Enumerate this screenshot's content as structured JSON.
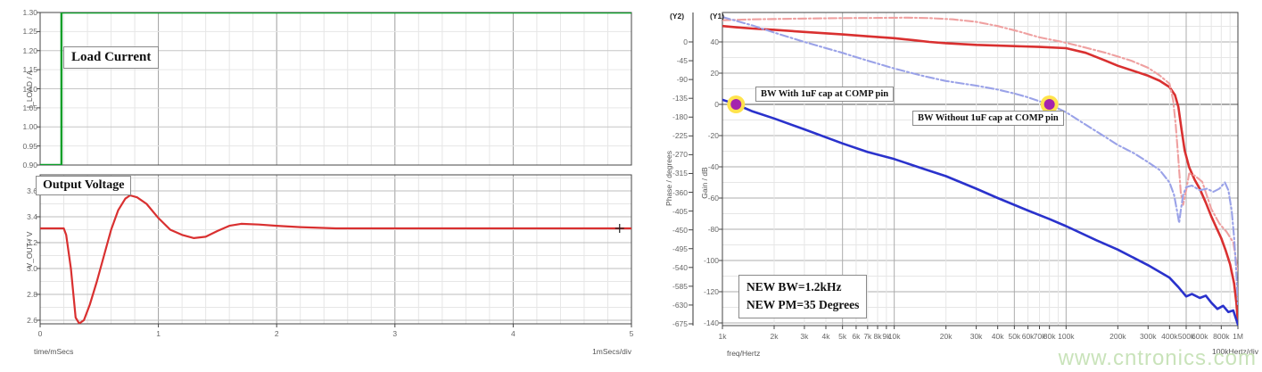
{
  "watermark": "www.cntronics.com",
  "colors": {
    "load_current_green": "#0a9e28",
    "output_voltage_red": "#d93030",
    "phase_with_red": "#d93030",
    "phase_without_pink": "#efa0a0",
    "gain_with_blue": "#2a32cc",
    "gain_without_lightblue": "#9aa2e8",
    "marker_purple": "#a423ae",
    "marker_halo_yellow": "#ffe34d",
    "grid_minor": "#e3e3e3",
    "grid_major": "#acacac",
    "frame": "#444444"
  },
  "chart_data": [
    {
      "id": "load-transient",
      "type": "line",
      "xlabel": "time/mSecs",
      "x_div_label": "1mSecs/div",
      "xlim": [
        0,
        5
      ],
      "x_ticks": [
        "0",
        "1",
        "2",
        "3",
        "4",
        "5"
      ],
      "x_minor_step": 0.2,
      "panes": [
        {
          "ylabel": "I_LOAD / A",
          "annotation": "Load Current",
          "ylim": [
            0.9,
            1.3
          ],
          "y_ticks": [
            "1.30",
            "1.25",
            "1.20",
            "1.15",
            "1.10",
            "1.05",
            "1.00",
            "0.95",
            "0.90"
          ],
          "series": [
            {
              "name": "load-current",
              "color": "#0a9e28",
              "dash": "none",
              "width": 2.4,
              "points": [
                [
                  0,
                  0.9
                ],
                [
                  0.18,
                  0.9
                ],
                [
                  0.18,
                  1.3
                ],
                [
                  5,
                  1.3
                ]
              ]
            }
          ]
        },
        {
          "ylabel": "V_OUT / V",
          "annotation": "Output Voltage",
          "ylim": [
            2.572,
            3.724
          ],
          "y_ticks": [
            "3.6",
            "3.4",
            "3.2",
            "3.0",
            "2.8",
            "2.6"
          ],
          "series": [
            {
              "name": "output-voltage",
              "color": "#d93030",
              "dash": "none",
              "width": 2.2,
              "points": [
                [
                  0,
                  3.31
                ],
                [
                  0.2,
                  3.31
                ],
                [
                  0.22,
                  3.26
                ],
                [
                  0.26,
                  3.0
                ],
                [
                  0.3,
                  2.62
                ],
                [
                  0.33,
                  2.575
                ],
                [
                  0.37,
                  2.6
                ],
                [
                  0.42,
                  2.72
                ],
                [
                  0.48,
                  2.9
                ],
                [
                  0.54,
                  3.1
                ],
                [
                  0.6,
                  3.3
                ],
                [
                  0.66,
                  3.45
                ],
                [
                  0.72,
                  3.54
                ],
                [
                  0.76,
                  3.565
                ],
                [
                  0.82,
                  3.55
                ],
                [
                  0.9,
                  3.5
                ],
                [
                  1.0,
                  3.39
                ],
                [
                  1.1,
                  3.3
                ],
                [
                  1.2,
                  3.26
                ],
                [
                  1.3,
                  3.235
                ],
                [
                  1.4,
                  3.245
                ],
                [
                  1.5,
                  3.29
                ],
                [
                  1.6,
                  3.33
                ],
                [
                  1.7,
                  3.345
                ],
                [
                  1.85,
                  3.34
                ],
                [
                  2.0,
                  3.33
                ],
                [
                  2.2,
                  3.32
                ],
                [
                  2.5,
                  3.31
                ],
                [
                  5,
                  3.31
                ]
              ]
            }
          ],
          "cursor": [
            4.9,
            3.31
          ]
        }
      ]
    },
    {
      "id": "loop-gain-bode",
      "type": "line",
      "x_scale": "log",
      "xlabel": "freq/Hertz",
      "x_div_label": "100kHertz/div",
      "xlim": [
        1000,
        1000000
      ],
      "x_ticks": [
        {
          "f": 1000,
          "label": "1k"
        },
        {
          "f": 2000,
          "label": "2k"
        },
        {
          "f": 3000,
          "label": "3k"
        },
        {
          "f": 4000,
          "label": "4k"
        },
        {
          "f": 5000,
          "label": "5k"
        },
        {
          "f": 6000,
          "label": "6k"
        },
        {
          "f": 7000,
          "label": "7k"
        },
        {
          "f": 8000,
          "label": "8k"
        },
        {
          "f": 9000,
          "label": "9k"
        },
        {
          "f": 10000,
          "label": "10k"
        },
        {
          "f": 20000,
          "label": "20k"
        },
        {
          "f": 30000,
          "label": "30k"
        },
        {
          "f": 40000,
          "label": "40k"
        },
        {
          "f": 50000,
          "label": "50k"
        },
        {
          "f": 60000,
          "label": "60k"
        },
        {
          "f": 70000,
          "label": "70k"
        },
        {
          "f": 80000,
          "label": "80k"
        },
        {
          "f": 100000,
          "label": "100k"
        },
        {
          "f": 200000,
          "label": "200k"
        },
        {
          "f": 300000,
          "label": "300k"
        },
        {
          "f": 400000,
          "label": "400k"
        },
        {
          "f": 500000,
          "label": "500k"
        },
        {
          "f": 600000,
          "label": "600k"
        },
        {
          "f": 800000,
          "label": "800k"
        },
        {
          "f": 1000000,
          "label": "1M"
        }
      ],
      "y_axes": [
        {
          "id": "(Y2)",
          "label": "Phase / degrees",
          "ticks": [
            "0",
            "-45",
            "-90",
            "-135",
            "-180",
            "-225",
            "-270",
            "-315",
            "-360",
            "-405",
            "-450",
            "-495",
            "-540",
            "-585",
            "-630",
            "-675"
          ]
        },
        {
          "id": "(Y1)",
          "label": "Gain / dB",
          "ticks": [
            "40",
            "20",
            "0",
            "-20",
            "-40",
            "-60",
            "-80",
            "-100",
            "-120",
            "-140"
          ]
        }
      ],
      "series": [
        {
          "name": "phase-with-cap",
          "axis": "Y2",
          "color": "#d93030",
          "dash": "none",
          "width": 2.6,
          "points": [
            [
              1000,
              38
            ],
            [
              1200,
              35
            ],
            [
              1500,
              32
            ],
            [
              2000,
              29
            ],
            [
              3000,
              24
            ],
            [
              5000,
              18
            ],
            [
              7000,
              13.5
            ],
            [
              10000,
              9
            ],
            [
              13000,
              4
            ],
            [
              16000,
              0
            ],
            [
              20000,
              -3
            ],
            [
              30000,
              -7
            ],
            [
              50000,
              -10
            ],
            [
              70000,
              -12
            ],
            [
              100000,
              -15
            ],
            [
              130000,
              -26
            ],
            [
              170000,
              -45
            ],
            [
              200000,
              -57
            ],
            [
              250000,
              -70
            ],
            [
              300000,
              -81
            ],
            [
              350000,
              -93
            ],
            [
              400000,
              -108
            ],
            [
              430000,
              -127
            ],
            [
              450000,
              -155
            ],
            [
              470000,
              -210
            ],
            [
              490000,
              -260
            ],
            [
              520000,
              -300
            ],
            [
              560000,
              -330
            ],
            [
              600000,
              -352
            ],
            [
              650000,
              -385
            ],
            [
              700000,
              -418
            ],
            [
              750000,
              -445
            ],
            [
              800000,
              -470
            ],
            [
              850000,
              -500
            ],
            [
              900000,
              -532
            ],
            [
              950000,
              -578
            ],
            [
              980000,
              -625
            ],
            [
              1000000,
              -672
            ]
          ]
        },
        {
          "name": "phase-without-cap",
          "axis": "Y2",
          "color": "#efa0a0",
          "dash": "9 3 2 3",
          "width": 2.1,
          "points": [
            [
              1000,
              52
            ],
            [
              1500,
              54
            ],
            [
              2000,
              55
            ],
            [
              3000,
              56
            ],
            [
              5000,
              57
            ],
            [
              8000,
              57.5
            ],
            [
              12000,
              58
            ],
            [
              16000,
              57
            ],
            [
              22000,
              54
            ],
            [
              30000,
              48
            ],
            [
              40000,
              38
            ],
            [
              52000,
              26
            ],
            [
              70000,
              11
            ],
            [
              95000,
              0
            ],
            [
              120000,
              -10
            ],
            [
              170000,
              -26
            ],
            [
              240000,
              -45
            ],
            [
              300000,
              -62
            ],
            [
              350000,
              -80
            ],
            [
              400000,
              -100
            ],
            [
              420000,
              -140
            ],
            [
              435000,
              -200
            ],
            [
              450000,
              -280
            ],
            [
              465000,
              -360
            ],
            [
              480000,
              -390
            ],
            [
              500000,
              -355
            ],
            [
              520000,
              -315
            ],
            [
              560000,
              -320
            ],
            [
              620000,
              -335
            ],
            [
              700000,
              -400
            ],
            [
              780000,
              -435
            ],
            [
              860000,
              -455
            ],
            [
              940000,
              -480
            ],
            [
              1000000,
              -550
            ]
          ]
        },
        {
          "name": "gain-with-cap",
          "axis": "Y1",
          "color": "#2a32cc",
          "dash": "none",
          "width": 2.6,
          "points": [
            [
              1000,
              3
            ],
            [
              1200,
              0
            ],
            [
              1500,
              -4.5
            ],
            [
              2000,
              -9
            ],
            [
              3000,
              -16
            ],
            [
              5000,
              -25
            ],
            [
              7000,
              -30.5
            ],
            [
              10000,
              -35
            ],
            [
              15000,
              -41.5
            ],
            [
              20000,
              -46
            ],
            [
              30000,
              -54
            ],
            [
              40000,
              -60
            ],
            [
              60000,
              -68
            ],
            [
              80000,
              -73.5
            ],
            [
              100000,
              -78
            ],
            [
              150000,
              -87
            ],
            [
              200000,
              -93
            ],
            [
              300000,
              -103
            ],
            [
              400000,
              -111
            ],
            [
              450000,
              -117
            ],
            [
              500000,
              -123
            ],
            [
              540000,
              -121.5
            ],
            [
              600000,
              -124
            ],
            [
              650000,
              -122.5
            ],
            [
              700000,
              -127
            ],
            [
              760000,
              -131
            ],
            [
              820000,
              -129
            ],
            [
              880000,
              -133
            ],
            [
              940000,
              -132
            ],
            [
              1000000,
              -141
            ]
          ]
        },
        {
          "name": "gain-without-cap",
          "axis": "Y1",
          "color": "#9aa2e8",
          "dash": "9 3 2 3",
          "width": 2.1,
          "points": [
            [
              1000,
              56
            ],
            [
              1500,
              50.5
            ],
            [
              2000,
              46
            ],
            [
              3000,
              40
            ],
            [
              5000,
              33
            ],
            [
              7000,
              28
            ],
            [
              10000,
              23
            ],
            [
              15000,
              18
            ],
            [
              20000,
              15
            ],
            [
              30000,
              12
            ],
            [
              40000,
              9.5
            ],
            [
              50000,
              7
            ],
            [
              60000,
              4.5
            ],
            [
              70000,
              2
            ],
            [
              80000,
              0
            ],
            [
              100000,
              -5
            ],
            [
              130000,
              -13
            ],
            [
              170000,
              -21
            ],
            [
              200000,
              -26
            ],
            [
              250000,
              -31.5
            ],
            [
              300000,
              -37
            ],
            [
              350000,
              -42
            ],
            [
              400000,
              -50
            ],
            [
              425000,
              -58
            ],
            [
              445000,
              -70
            ],
            [
              455000,
              -76
            ],
            [
              465000,
              -68
            ],
            [
              480000,
              -58
            ],
            [
              500000,
              -53
            ],
            [
              540000,
              -52
            ],
            [
              600000,
              -55
            ],
            [
              660000,
              -54
            ],
            [
              720000,
              -56
            ],
            [
              780000,
              -54
            ],
            [
              840000,
              -50
            ],
            [
              880000,
              -55
            ],
            [
              920000,
              -68
            ],
            [
              950000,
              -85
            ],
            [
              975000,
              -105
            ],
            [
              1000000,
              -128
            ]
          ]
        }
      ],
      "markers": [
        {
          "name": "bw-with-marker",
          "f": 1200,
          "gain_db": 0
        },
        {
          "name": "bw-without-marker",
          "f": 80000,
          "gain_db": 0
        }
      ],
      "annotations": {
        "bw_with": "BW With 1uF cap at COMP pin",
        "bw_without": "BW Without 1uF cap at COMP pin",
        "result_line1": "NEW BW=1.2kHz",
        "result_line2": "NEW PM=35 Degrees"
      }
    }
  ]
}
